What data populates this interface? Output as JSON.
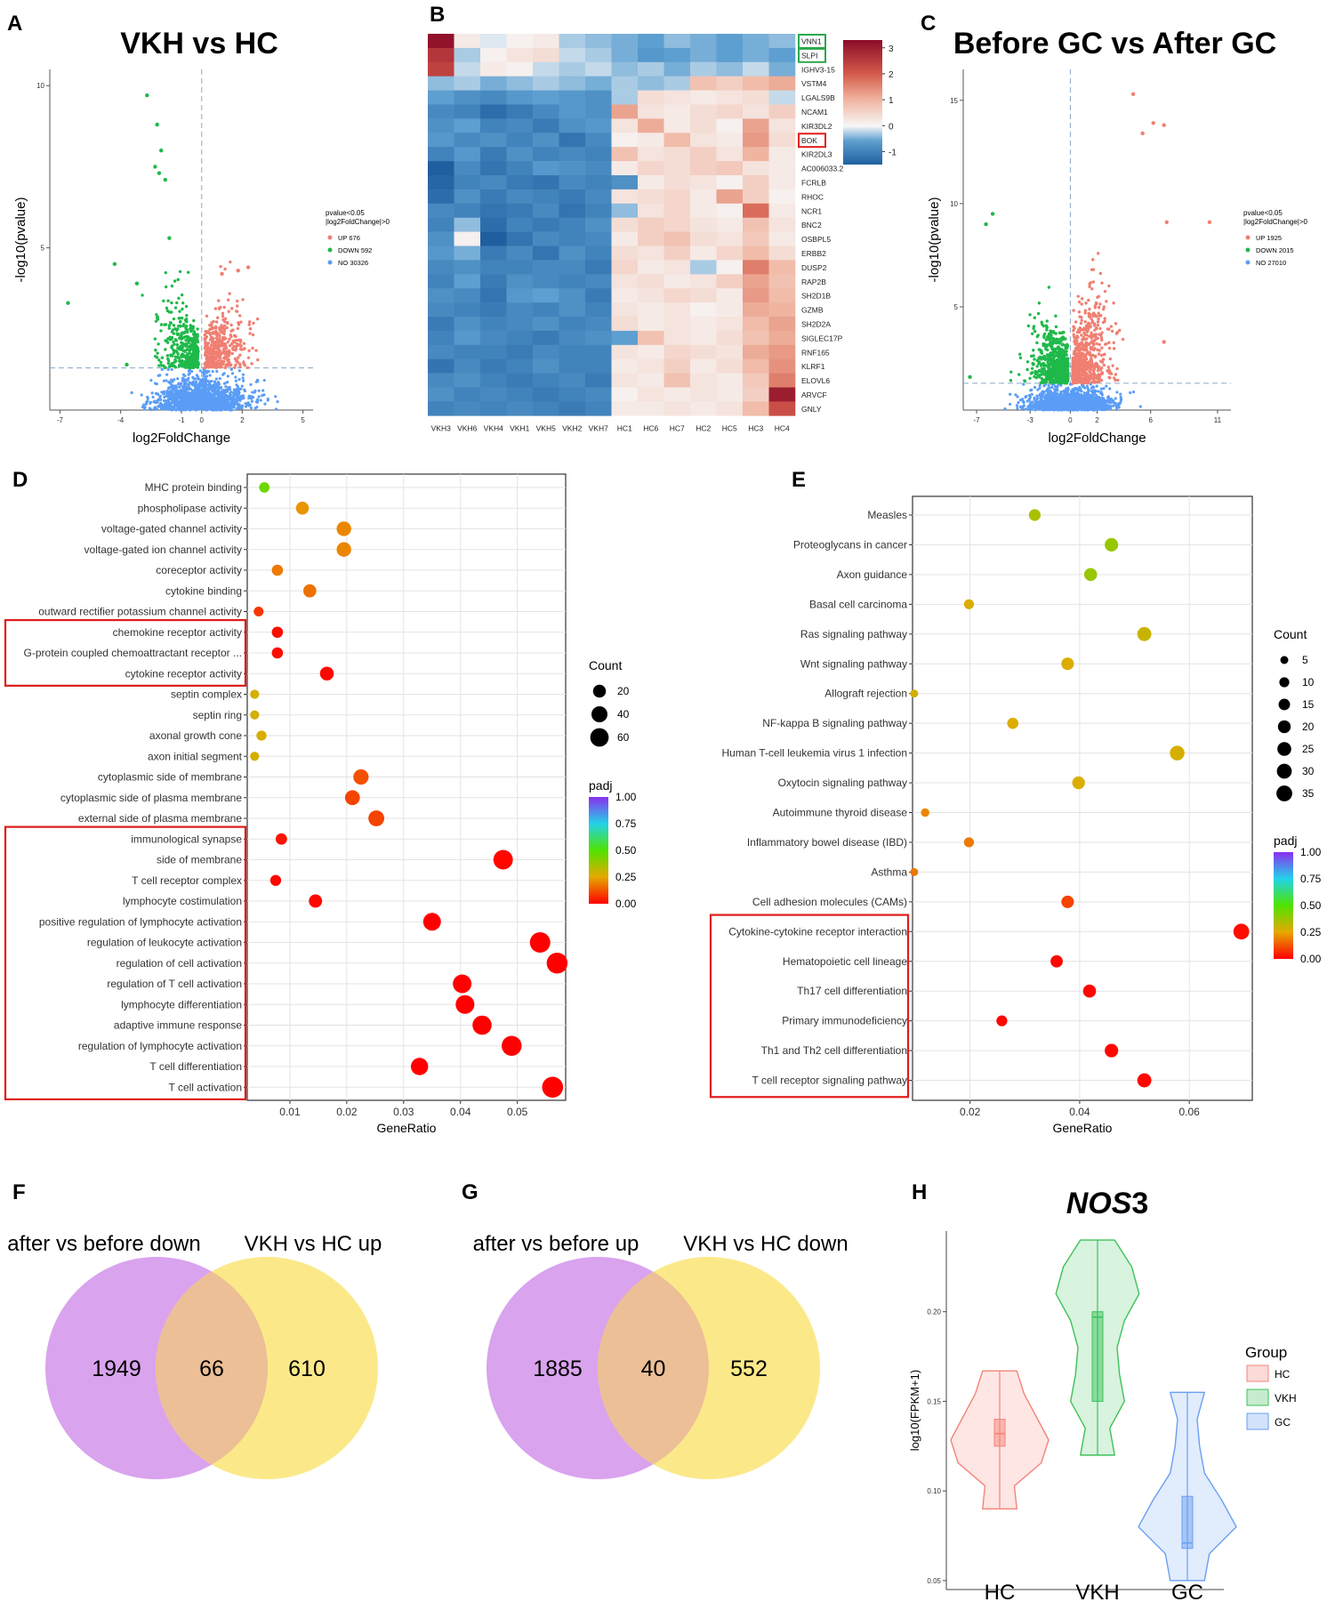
{
  "chart_data": [
    {
      "id": "A",
      "letter": "A",
      "type": "scatter",
      "title": "VKH vs HC",
      "xlabel": "log2FoldChange",
      "ylabel": "-log10(pvalue)",
      "xticks": [
        "-7",
        "-4",
        "-1",
        "0",
        "2",
        "5"
      ],
      "yticks": [
        "5",
        "10"
      ],
      "xlim": [
        -7.5,
        5.5
      ],
      "ylim": [
        0,
        10.5
      ],
      "legend_title": [
        "pvalue<0.05",
        "|log2FoldChange|>0"
      ],
      "legend": [
        {
          "label": "UP 676",
          "color": "#f07f72"
        },
        {
          "label": "DOWN 592",
          "color": "#1fb94a"
        },
        {
          "label": "NO 30326",
          "color": "#5b9df6"
        }
      ],
      "threshold_y": 1.3
    },
    {
      "id": "B",
      "letter": "B",
      "type": "heatmap",
      "columns": [
        "VKH3",
        "VKH6",
        "VKH4",
        "VKH1",
        "VKH5",
        "VKH2",
        "VKH7",
        "HC1",
        "HC6",
        "HC7",
        "HC2",
        "HC5",
        "HC3",
        "HC4"
      ],
      "rows": [
        "VNN1",
        "SLPI",
        "IGHV3-15",
        "VSTM4",
        "LGALS9B",
        "NCAM1",
        "KIR3DL2",
        "BOK",
        "KIR2DL3",
        "AC006033.2",
        "FCRLB",
        "RHOC",
        "NCR1",
        "BNC2",
        "OSBPL5",
        "ERBB2",
        "DUSP2",
        "RAP2B",
        "SH2D1B",
        "GZMB",
        "SH2D2A",
        "SIGLEC17P",
        "RNF165",
        "KLRF1",
        "ELOVL6",
        "ARVCF",
        "GNLY"
      ],
      "green_boxed": [
        "VNN1",
        "SLPI"
      ],
      "red_boxed": [
        "BOK"
      ],
      "scale_ticks": [
        "3",
        "2",
        "1",
        "0",
        "-1"
      ],
      "scale_range": [
        -1.5,
        3.3
      ],
      "values": [
        [
          3.2,
          0.2,
          -0.1,
          0.1,
          0.2,
          -0.3,
          -0.4,
          -0.5,
          -0.6,
          -0.4,
          -0.5,
          -0.6,
          -0.5,
          -0.4
        ],
        [
          2.6,
          -0.3,
          0.1,
          0.3,
          0.4,
          -0.2,
          -0.3,
          -0.5,
          -0.7,
          -0.6,
          -0.5,
          -0.6,
          -0.5,
          -0.6
        ],
        [
          2.4,
          -0.2,
          0.2,
          0.1,
          -0.2,
          -0.3,
          -0.2,
          -0.4,
          -0.3,
          -0.5,
          -0.3,
          -0.4,
          -0.2,
          -0.5
        ],
        [
          -0.4,
          -0.3,
          -0.5,
          -0.4,
          -0.3,
          -0.4,
          -0.5,
          -0.3,
          -0.4,
          -0.3,
          0.8,
          0.6,
          0.9,
          1.1
        ],
        [
          -0.6,
          -0.8,
          -0.9,
          -0.7,
          -0.6,
          -0.7,
          -0.8,
          -0.3,
          0.4,
          0.3,
          0.2,
          0.3,
          0.4,
          -0.2
        ],
        [
          -0.9,
          -1.0,
          -1.3,
          -1.1,
          -0.9,
          -0.7,
          -0.8,
          1.2,
          0.3,
          0.2,
          0.4,
          0.5,
          0.3,
          0.6
        ],
        [
          -0.8,
          -0.6,
          -1.0,
          -0.9,
          -1.1,
          -0.8,
          -0.7,
          0.3,
          1.1,
          0.2,
          0.4,
          0.1,
          1.2,
          0.3
        ],
        [
          -0.7,
          -0.9,
          -0.8,
          -1.0,
          -0.8,
          -1.2,
          -0.9,
          0.1,
          0.2,
          0.9,
          0.3,
          0.2,
          1.3,
          0.4
        ],
        [
          -1.0,
          -0.7,
          -1.1,
          -0.8,
          -1.0,
          -0.9,
          -1.0,
          0.8,
          0.3,
          0.4,
          0.6,
          0.3,
          1.0,
          0.2
        ],
        [
          -1.5,
          -0.9,
          -1.2,
          -1.0,
          -0.7,
          -0.8,
          -0.9,
          0.2,
          0.5,
          0.4,
          0.6,
          0.7,
          0.3,
          0.2
        ],
        [
          -1.4,
          -1.0,
          -0.9,
          -1.1,
          -1.2,
          -0.9,
          -1.0,
          -0.8,
          0.2,
          0.4,
          0.3,
          0.1,
          0.6,
          0.2
        ],
        [
          -1.3,
          -0.8,
          -1.1,
          -0.9,
          -1.0,
          -1.1,
          -0.9,
          0.3,
          0.4,
          0.5,
          0.2,
          1.2,
          0.6,
          0.1
        ],
        [
          -0.9,
          -1.0,
          -1.2,
          -1.1,
          -0.9,
          -1.2,
          -1.0,
          -0.4,
          0.3,
          0.5,
          0.2,
          0.1,
          1.8,
          0.2
        ],
        [
          -1.0,
          -0.4,
          -1.3,
          -1.0,
          -1.1,
          -1.0,
          -0.8,
          0.4,
          0.6,
          0.5,
          0.3,
          0.2,
          0.8,
          0.3
        ],
        [
          -0.8,
          0.1,
          -1.6,
          -1.2,
          -0.9,
          -1.0,
          -0.9,
          0.2,
          0.6,
          0.8,
          0.4,
          0.3,
          0.7,
          0.2
        ],
        [
          -0.7,
          -0.5,
          -1.1,
          -0.9,
          -1.2,
          -0.8,
          -1.0,
          0.4,
          0.3,
          0.6,
          0.2,
          0.5,
          0.9,
          0.4
        ],
        [
          -0.9,
          -0.8,
          -1.0,
          -1.0,
          -0.9,
          -0.9,
          -1.1,
          0.5,
          0.2,
          0.3,
          -0.3,
          0.1,
          1.6,
          0.9
        ],
        [
          -1.0,
          -0.6,
          -1.1,
          -0.8,
          -0.9,
          -1.0,
          -0.9,
          0.3,
          0.4,
          0.2,
          0.3,
          0.6,
          1.2,
          0.8
        ],
        [
          -0.8,
          -0.9,
          -1.2,
          -0.7,
          -0.6,
          -0.8,
          -1.1,
          0.2,
          0.3,
          0.5,
          0.4,
          0.2,
          1.3,
          0.9
        ],
        [
          -0.9,
          -1.0,
          -1.1,
          -0.9,
          -1.0,
          -0.8,
          -1.0,
          0.3,
          0.2,
          0.3,
          0.1,
          0.2,
          1.1,
          1.0
        ],
        [
          -1.1,
          -0.8,
          -1.0,
          -0.9,
          -0.8,
          -1.0,
          -0.9,
          0.4,
          0.2,
          0.3,
          0.2,
          0.3,
          0.9,
          1.2
        ],
        [
          -1.0,
          -0.7,
          -0.9,
          -1.0,
          -1.1,
          -0.9,
          -0.8,
          -0.6,
          0.8,
          0.3,
          0.2,
          0.4,
          0.8,
          1.1
        ],
        [
          -0.9,
          -1.0,
          -1.0,
          -1.1,
          -0.9,
          -1.0,
          -1.0,
          0.3,
          0.2,
          0.5,
          0.4,
          0.3,
          1.1,
          1.3
        ],
        [
          -1.2,
          -0.9,
          -1.1,
          -1.0,
          -0.8,
          -1.0,
          -1.0,
          0.2,
          0.3,
          0.6,
          0.2,
          0.4,
          0.9,
          1.4
        ],
        [
          -0.9,
          -0.8,
          -1.0,
          -1.1,
          -1.0,
          -0.9,
          -1.1,
          0.3,
          0.2,
          0.8,
          0.3,
          0.2,
          0.7,
          1.6
        ],
        [
          -0.8,
          -1.0,
          -0.9,
          -1.0,
          -1.1,
          -1.0,
          -0.9,
          0.1,
          0.3,
          0.2,
          0.3,
          0.2,
          0.6,
          3.0
        ],
        [
          -1.0,
          -0.9,
          -1.0,
          -0.9,
          -1.0,
          -1.1,
          -1.0,
          0.2,
          0.2,
          0.3,
          0.2,
          0.3,
          0.9,
          2.2
        ]
      ]
    },
    {
      "id": "C",
      "letter": "C",
      "type": "scatter",
      "title": "Before GC vs After GC",
      "xlabel": "log2FoldChange",
      "ylabel": "-log10(pvalue)",
      "xticks": [
        "-7",
        "-3",
        "0",
        "2",
        "6",
        "11"
      ],
      "yticks": [
        "5",
        "10",
        "15"
      ],
      "xlim": [
        -8,
        12
      ],
      "ylim": [
        0,
        16.5
      ],
      "legend_title": [
        "pvalue<0.05",
        "|log2FoldChange|>0"
      ],
      "legend": [
        {
          "label": "UP 1925",
          "color": "#f07f72"
        },
        {
          "label": "DOWN 2015",
          "color": "#1fb94a"
        },
        {
          "label": "NO 27010",
          "color": "#5b9df6"
        }
      ],
      "threshold_y": 1.3
    },
    {
      "id": "D",
      "letter": "D",
      "type": "scatter",
      "xlabel": "GeneRatio",
      "xticks": [
        0.01,
        0.02,
        0.03,
        0.04,
        0.05
      ],
      "xtick_labels": [
        "0.01",
        "0.02",
        "0.03",
        "0.04",
        "0.05"
      ],
      "xlim": [
        0.0025,
        0.0585
      ],
      "terms": [
        {
          "label": "MHC protein binding",
          "x": 0.0055,
          "count": 9,
          "padj": 0.45
        },
        {
          "label": "phospholipase activity",
          "x": 0.0122,
          "count": 20,
          "padj": 0.22
        },
        {
          "label": "voltage-gated channel activity",
          "x": 0.0195,
          "count": 30,
          "padj": 0.2
        },
        {
          "label": "voltage-gated ion channel activity",
          "x": 0.0195,
          "count": 30,
          "padj": 0.2
        },
        {
          "label": "coreceptor activity",
          "x": 0.0078,
          "count": 12,
          "padj": 0.18
        },
        {
          "label": "cytokine binding",
          "x": 0.0135,
          "count": 21,
          "padj": 0.17
        },
        {
          "label": "outward rectifier potassium channel activity",
          "x": 0.0045,
          "count": 7,
          "padj": 0.08
        },
        {
          "label": "chemokine receptor activity",
          "x": 0.0078,
          "count": 12,
          "padj": 0.02
        },
        {
          "label": "G-protein coupled chemoattractant receptor ...",
          "x": 0.0078,
          "count": 12,
          "padj": 0.02
        },
        {
          "label": "cytokine receptor activity",
          "x": 0.0165,
          "count": 25,
          "padj": 0.01
        },
        {
          "label": "septin complex",
          "x": 0.0038,
          "count": 5,
          "padj": 0.28
        },
        {
          "label": "septin ring",
          "x": 0.0038,
          "count": 5,
          "padj": 0.28
        },
        {
          "label": "axonal growth cone",
          "x": 0.005,
          "count": 8,
          "padj": 0.27
        },
        {
          "label": "axon initial segment",
          "x": 0.0038,
          "count": 5,
          "padj": 0.28
        },
        {
          "label": "cytoplasmic side of membrane",
          "x": 0.0225,
          "count": 35,
          "padj": 0.12
        },
        {
          "label": "cytoplasmic side of plasma membrane",
          "x": 0.021,
          "count": 32,
          "padj": 0.1
        },
        {
          "label": "external side of plasma membrane",
          "x": 0.0252,
          "count": 39,
          "padj": 0.1
        },
        {
          "label": "immunological synapse",
          "x": 0.0085,
          "count": 13,
          "padj": 0.03
        },
        {
          "label": "side of membrane",
          "x": 0.0475,
          "count": 70,
          "padj": 0.01
        },
        {
          "label": "T cell receptor complex",
          "x": 0.0075,
          "count": 11,
          "padj": 0.01
        },
        {
          "label": "lymphocyte costimulation",
          "x": 0.0145,
          "count": 22,
          "padj": 0.01
        },
        {
          "label": "positive regulation of lymphocyte activation",
          "x": 0.035,
          "count": 54,
          "padj": 0.0
        },
        {
          "label": "regulation of leukocyte activation",
          "x": 0.054,
          "count": 80,
          "padj": 0.0
        },
        {
          "label": "regulation of cell activation",
          "x": 0.057,
          "count": 85,
          "padj": 0.0
        },
        {
          "label": "regulation of T cell activation",
          "x": 0.0403,
          "count": 62,
          "padj": 0.0
        },
        {
          "label": "lymphocyte differentiation",
          "x": 0.0408,
          "count": 63,
          "padj": 0.0
        },
        {
          "label": "adaptive immune response",
          "x": 0.0438,
          "count": 67,
          "padj": 0.0
        },
        {
          "label": "regulation of lymphocyte activation",
          "x": 0.049,
          "count": 75,
          "padj": 0.0
        },
        {
          "label": "T cell differentiation",
          "x": 0.0328,
          "count": 50,
          "padj": 0.0
        },
        {
          "label": "T cell activation",
          "x": 0.0562,
          "count": 86,
          "padj": 0.0
        }
      ],
      "red_boxes": [
        [
          7,
          9
        ],
        [
          17,
          29
        ]
      ],
      "count_legend_title": "Count",
      "count_legend": [
        20,
        40,
        60
      ],
      "padj_legend_title": "padj",
      "padj_ticks": [
        "1.00",
        "0.75",
        "0.50",
        "0.25",
        "0.00"
      ]
    },
    {
      "id": "E",
      "letter": "E",
      "type": "scatter",
      "xlabel": "GeneRatio",
      "xticks": [
        0.02,
        0.04,
        0.06
      ],
      "xtick_labels": [
        "0.02",
        "0.04",
        "0.06"
      ],
      "xlim": [
        0.0095,
        0.0715
      ],
      "terms": [
        {
          "label": "Measles",
          "x": 0.0318,
          "count": 16,
          "padj": 0.35
        },
        {
          "label": "Proteoglycans in cancer",
          "x": 0.0458,
          "count": 23,
          "padj": 0.38
        },
        {
          "label": "Axon guidance",
          "x": 0.042,
          "count": 21,
          "padj": 0.38
        },
        {
          "label": "Basal cell carcinoma",
          "x": 0.0198,
          "count": 10,
          "padj": 0.27
        },
        {
          "label": "Ras signaling pathway",
          "x": 0.0518,
          "count": 26,
          "padj": 0.3
        },
        {
          "label": "Wnt signaling pathway",
          "x": 0.0378,
          "count": 19,
          "padj": 0.27
        },
        {
          "label": "Allograft rejection",
          "x": 0.0098,
          "count": 5,
          "padj": 0.28
        },
        {
          "label": "NF-kappa B signaling pathway",
          "x": 0.0278,
          "count": 14,
          "padj": 0.27
        },
        {
          "label": "Human T-cell leukemia virus 1 infection",
          "x": 0.0578,
          "count": 29,
          "padj": 0.28
        },
        {
          "label": "Oxytocin signaling pathway",
          "x": 0.0398,
          "count": 20,
          "padj": 0.27
        },
        {
          "label": "Autoimmune thyroid disease",
          "x": 0.0118,
          "count": 6,
          "padj": 0.2
        },
        {
          "label": "Inflammatory bowel disease (IBD)",
          "x": 0.0198,
          "count": 10,
          "padj": 0.18
        },
        {
          "label": "Asthma",
          "x": 0.0098,
          "count": 5,
          "padj": 0.18
        },
        {
          "label": "Cell adhesion molecules (CAMs)",
          "x": 0.0378,
          "count": 19,
          "padj": 0.1
        },
        {
          "label": "Cytokine-cytokine receptor interaction",
          "x": 0.0695,
          "count": 35,
          "padj": 0.02
        },
        {
          "label": "Hematopoietic cell lineage",
          "x": 0.0358,
          "count": 18,
          "padj": 0.01
        },
        {
          "label": "Th17 cell differentiation",
          "x": 0.0418,
          "count": 21,
          "padj": 0.01
        },
        {
          "label": "Primary immunodeficiency",
          "x": 0.0258,
          "count": 13,
          "padj": 0.01
        },
        {
          "label": "Th1 and Th2 cell differentiation",
          "x": 0.0458,
          "count": 23,
          "padj": 0.01
        },
        {
          "label": "T cell receptor signaling pathway",
          "x": 0.0518,
          "count": 26,
          "padj": 0.01
        }
      ],
      "red_boxes": [
        [
          14,
          19
        ]
      ],
      "count_legend_title": "Count",
      "count_legend": [
        5,
        10,
        15,
        20,
        25,
        30,
        35
      ],
      "padj_legend_title": "padj",
      "padj_ticks": [
        "1.00",
        "0.75",
        "0.50",
        "0.25",
        "0.00"
      ]
    },
    {
      "id": "F",
      "letter": "F",
      "type": "venn",
      "left_label": "after vs before down",
      "right_label": "VKH vs HC up",
      "left_only": "1949",
      "overlap": "66",
      "right_only": "610"
    },
    {
      "id": "G",
      "letter": "G",
      "type": "venn",
      "left_label": "after vs before up",
      "right_label": "VKH vs HC down",
      "left_only": "1885",
      "overlap": "40",
      "right_only": "552"
    },
    {
      "id": "H",
      "letter": "H",
      "type": "violin",
      "title_italic": "NOS",
      "title_plain": "3",
      "ylabel": "log10(FPKM+1)",
      "yticks": [
        0.05,
        0.1,
        0.15,
        0.2
      ],
      "ytick_labels": [
        "0.05",
        "0.10",
        "0.15",
        "0.20"
      ],
      "ylim": [
        0.045,
        0.245
      ],
      "legend_title": "Group",
      "groups": [
        {
          "name": "HC",
          "color": "#f3847a",
          "min": 0.09,
          "max": 0.167,
          "q1": 0.125,
          "median": 0.132,
          "q3": 0.14
        },
        {
          "name": "VKH",
          "color": "#3ec15b",
          "min": 0.12,
          "max": 0.24,
          "q1": 0.15,
          "median": 0.197,
          "q3": 0.2
        },
        {
          "name": "GC",
          "color": "#6a9ff2",
          "min": 0.05,
          "max": 0.155,
          "q1": 0.068,
          "median": 0.071,
          "q3": 0.097
        }
      ]
    }
  ]
}
